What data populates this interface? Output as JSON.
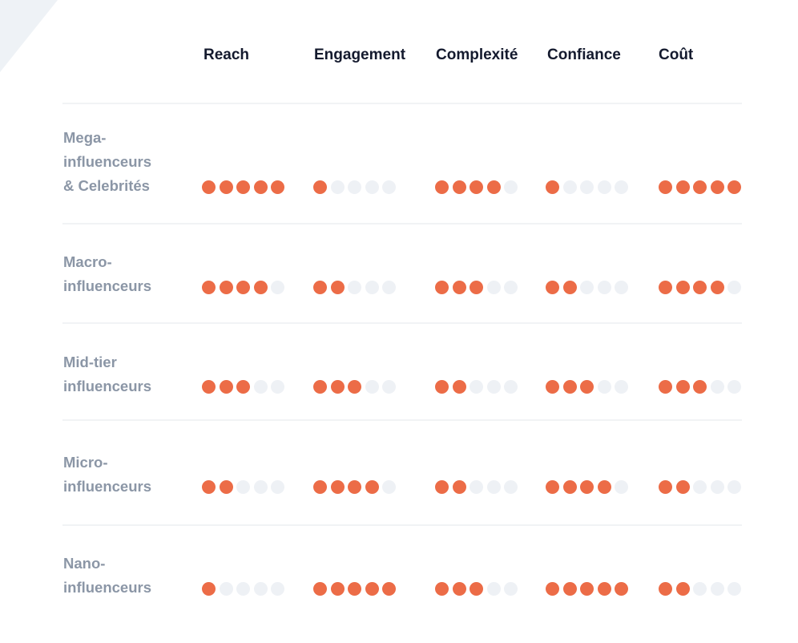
{
  "chart_data": {
    "type": "table",
    "columns": [
      "Reach",
      "Engagement",
      "Complexité",
      "Confiance",
      "Coût"
    ],
    "max_rating": 5,
    "rows": [
      {
        "label_lines": [
          "Mega-",
          "influenceurs",
          "& Celebrités"
        ],
        "ratings": [
          5,
          1,
          4,
          1,
          5
        ]
      },
      {
        "label_lines": [
          "Macro-",
          "influenceurs"
        ],
        "ratings": [
          4,
          2,
          3,
          2,
          4
        ]
      },
      {
        "label_lines": [
          "Mid-tier",
          "influenceurs"
        ],
        "ratings": [
          3,
          3,
          2,
          3,
          3
        ]
      },
      {
        "label_lines": [
          "Micro-",
          "influenceurs"
        ],
        "ratings": [
          2,
          4,
          2,
          4,
          2
        ]
      },
      {
        "label_lines": [
          "Nano-",
          "influenceurs"
        ],
        "ratings": [
          1,
          5,
          3,
          5,
          2
        ]
      }
    ],
    "colors": {
      "filled_dot": "#ec6c47",
      "empty_dot": "#eef1f5",
      "header_text": "#141a2e",
      "row_label_text": "#8b96a6",
      "divider": "#f1f3f5"
    }
  }
}
